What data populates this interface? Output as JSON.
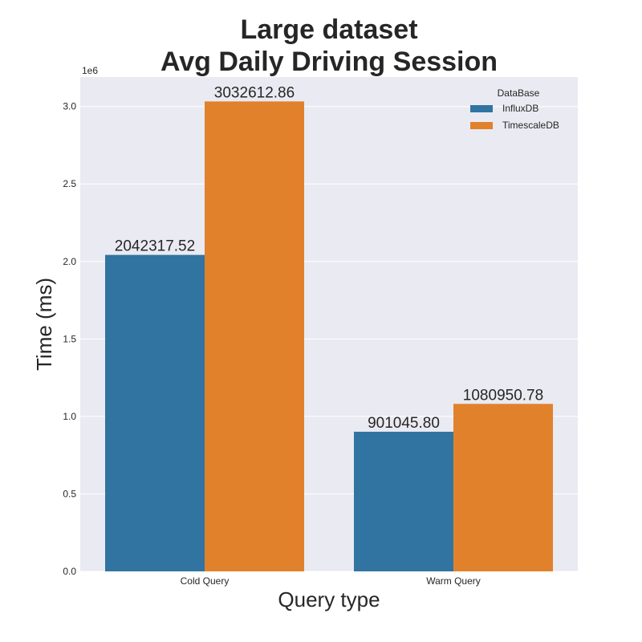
{
  "chart_data": {
    "type": "bar",
    "title_lines": [
      "Large dataset",
      "Avg Daily Driving Session"
    ],
    "xlabel": "Query type",
    "ylabel": "Time (ms)",
    "y_offset_label": "1e6",
    "categories": [
      "Cold Query",
      "Warm Query"
    ],
    "ylim": [
      0,
      3190000
    ],
    "y_ticks": [
      0,
      500000,
      1000000,
      1500000,
      2000000,
      2500000,
      3000000
    ],
    "y_tick_labels": [
      "0.0",
      "0.5",
      "1.0",
      "1.5",
      "2.0",
      "2.5",
      "3.0"
    ],
    "legend_title": "DataBase",
    "legend_position": "top-right",
    "grid": true,
    "series": [
      {
        "name": "InfluxDB",
        "color": "#3274a1",
        "values": [
          2042317.52,
          901045.8
        ],
        "labels": [
          "2042317.52",
          "901045.80"
        ]
      },
      {
        "name": "TimescaleDB",
        "color": "#e1812c",
        "values": [
          3032612.86,
          1080950.78
        ],
        "labels": [
          "3032612.86",
          "1080950.78"
        ]
      }
    ]
  }
}
